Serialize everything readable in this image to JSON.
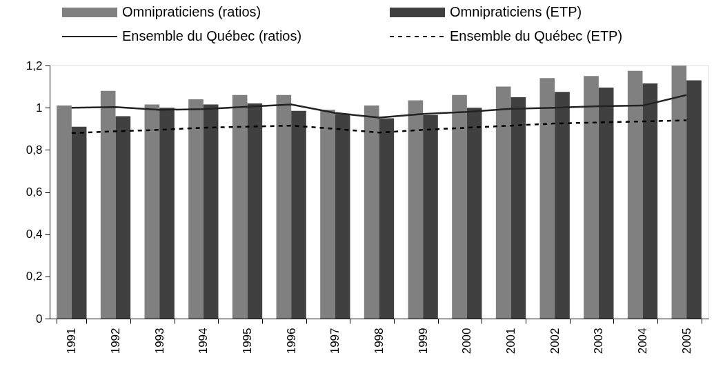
{
  "chart_data": {
    "type": "bar",
    "categories": [
      "1991",
      "1992",
      "1993",
      "1994",
      "1995",
      "1996",
      "1997",
      "1998",
      "1999",
      "2000",
      "2001",
      "2002",
      "2003",
      "2004",
      "2005"
    ],
    "series": [
      {
        "name": "Omnipraticiens (ratios)",
        "color": "#808080",
        "values": [
          1.01,
          1.08,
          1.015,
          1.04,
          1.06,
          1.06,
          0.99,
          1.01,
          1.035,
          1.06,
          1.1,
          1.14,
          1.15,
          1.175,
          1.2
        ]
      },
      {
        "name": "Omnipraticiens (ETP)",
        "color": "#404040",
        "values": [
          0.91,
          0.96,
          1.0,
          1.015,
          1.02,
          0.985,
          0.97,
          0.95,
          0.965,
          1.0,
          1.05,
          1.075,
          1.095,
          1.115,
          1.13
        ]
      },
      {
        "name": "Ensemble du Québec (ratios)",
        "type": "line",
        "line_style": "solid",
        "color": "#222222",
        "values": [
          1.0,
          1.003,
          0.99,
          0.993,
          1.005,
          1.015,
          0.975,
          0.953,
          0.97,
          0.98,
          0.995,
          1.0,
          1.007,
          1.01,
          1.06
        ]
      },
      {
        "name": "Ensemble du Québec (ETP)",
        "type": "line",
        "line_style": "dashed",
        "color": "#000000",
        "values": [
          0.88,
          0.888,
          0.895,
          0.905,
          0.91,
          0.915,
          0.9,
          0.882,
          0.895,
          0.905,
          0.915,
          0.925,
          0.93,
          0.935,
          0.94
        ]
      }
    ],
    "ylim": [
      0,
      1.2
    ],
    "yticks": [
      0,
      {
        "value": 0.2,
        "label": "0,2"
      },
      {
        "value": 0.4,
        "label": "0,4"
      },
      {
        "value": 0.6,
        "label": "0,6"
      },
      {
        "value": 0.8,
        "label": "0,8"
      },
      1,
      {
        "value": 1.2,
        "label": "1,2"
      }
    ],
    "grid": false,
    "legend": "top",
    "marker": "none"
  }
}
